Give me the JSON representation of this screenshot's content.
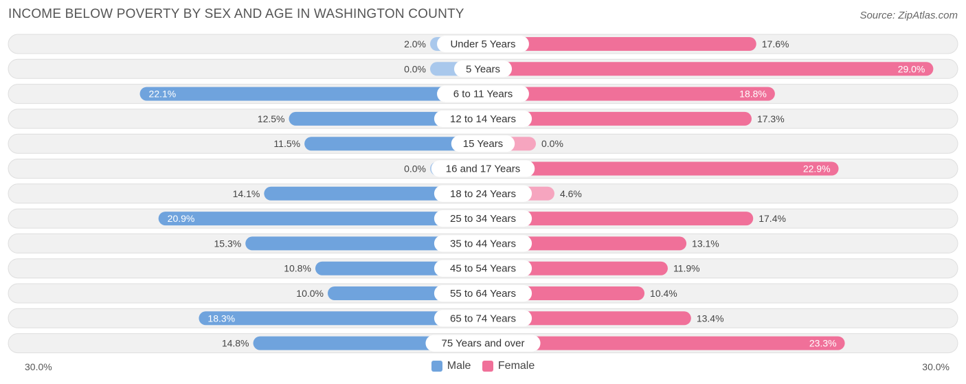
{
  "header": {
    "title": "INCOME BELOW POVERTY BY SEX AND AGE IN WASHINGTON COUNTY",
    "source": "Source: ZipAtlas.com"
  },
  "axis": {
    "left_label": "30.0%",
    "right_label": "30.0%"
  },
  "legend": {
    "male_label": "Male",
    "female_label": "Female"
  },
  "colors": {
    "male": "#6fa3dd",
    "male_light": "#a9c8ec",
    "female": "#f07099",
    "female_light": "#f6a5bf",
    "row_bg": "#f1f1f1",
    "row_border": "#dedede"
  },
  "chart_data": {
    "type": "bar",
    "orientation": "horizontal-diverging",
    "title": "INCOME BELOW POVERTY BY SEX AND AGE IN WASHINGTON COUNTY",
    "xlim": [
      -30,
      30
    ],
    "unit": "%",
    "categories": [
      "Under 5 Years",
      "5 Years",
      "6 to 11 Years",
      "12 to 14 Years",
      "15 Years",
      "16 and 17 Years",
      "18 to 24 Years",
      "25 to 34 Years",
      "35 to 44 Years",
      "45 to 54 Years",
      "55 to 64 Years",
      "65 to 74 Years",
      "75 Years and over"
    ],
    "series": [
      {
        "name": "Male",
        "values": [
          2.0,
          0.0,
          22.1,
          12.5,
          11.5,
          0.0,
          14.1,
          20.9,
          15.3,
          10.8,
          10.0,
          18.3,
          14.8
        ],
        "labels": [
          "2.0%",
          "0.0%",
          "22.1%",
          "12.5%",
          "11.5%",
          "0.0%",
          "14.1%",
          "20.9%",
          "15.3%",
          "10.8%",
          "10.0%",
          "18.3%",
          "14.8%"
        ]
      },
      {
        "name": "Female",
        "values": [
          17.6,
          29.0,
          18.8,
          17.3,
          0.0,
          22.9,
          4.6,
          17.4,
          13.1,
          11.9,
          10.4,
          13.4,
          23.3
        ],
        "labels": [
          "17.6%",
          "29.0%",
          "18.8%",
          "17.3%",
          "0.0%",
          "22.9%",
          "4.6%",
          "17.4%",
          "13.1%",
          "11.9%",
          "10.4%",
          "13.4%",
          "23.3%"
        ]
      }
    ]
  }
}
